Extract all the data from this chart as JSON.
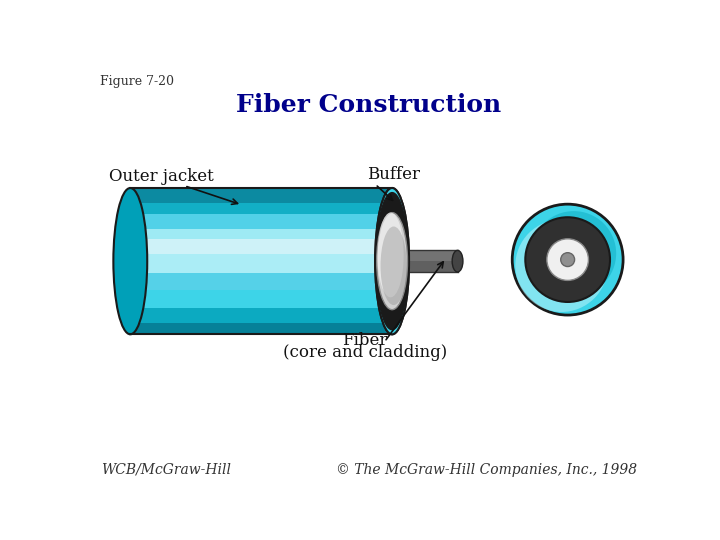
{
  "title": "Fiber Construction",
  "figure_label": "Figure 7-20",
  "footer_left": "WCB/McGraw-Hill",
  "footer_right": "© The McGraw-Hill Companies, Inc., 1998",
  "title_color": "#00008B",
  "title_fontsize": 18,
  "label_fontsize": 12,
  "footer_fontsize": 10,
  "background": "#ffffff",
  "labels": {
    "outer_jacket": "Outer jacket",
    "buffer": "Buffer",
    "fiber": "Fiber\n(core and cladding)"
  },
  "colors": {
    "cyan_main": "#3dd4e8",
    "cyan_light": "#90e8f4",
    "cyan_lighter": "#c8f4fa",
    "cyan_dark": "#00a0b8",
    "cyan_darker": "#007890",
    "black": "#1a1a1a",
    "dark_gray": "#303030",
    "outline": "#1a1a1a",
    "stripe_white": "#e8f8fc",
    "stripe_mid": "#60d0e8",
    "gray_buffer": "#c8c8c8",
    "gray_buffer_dark": "#989898",
    "stick_dark": "#404040",
    "stick_light": "#888888"
  }
}
